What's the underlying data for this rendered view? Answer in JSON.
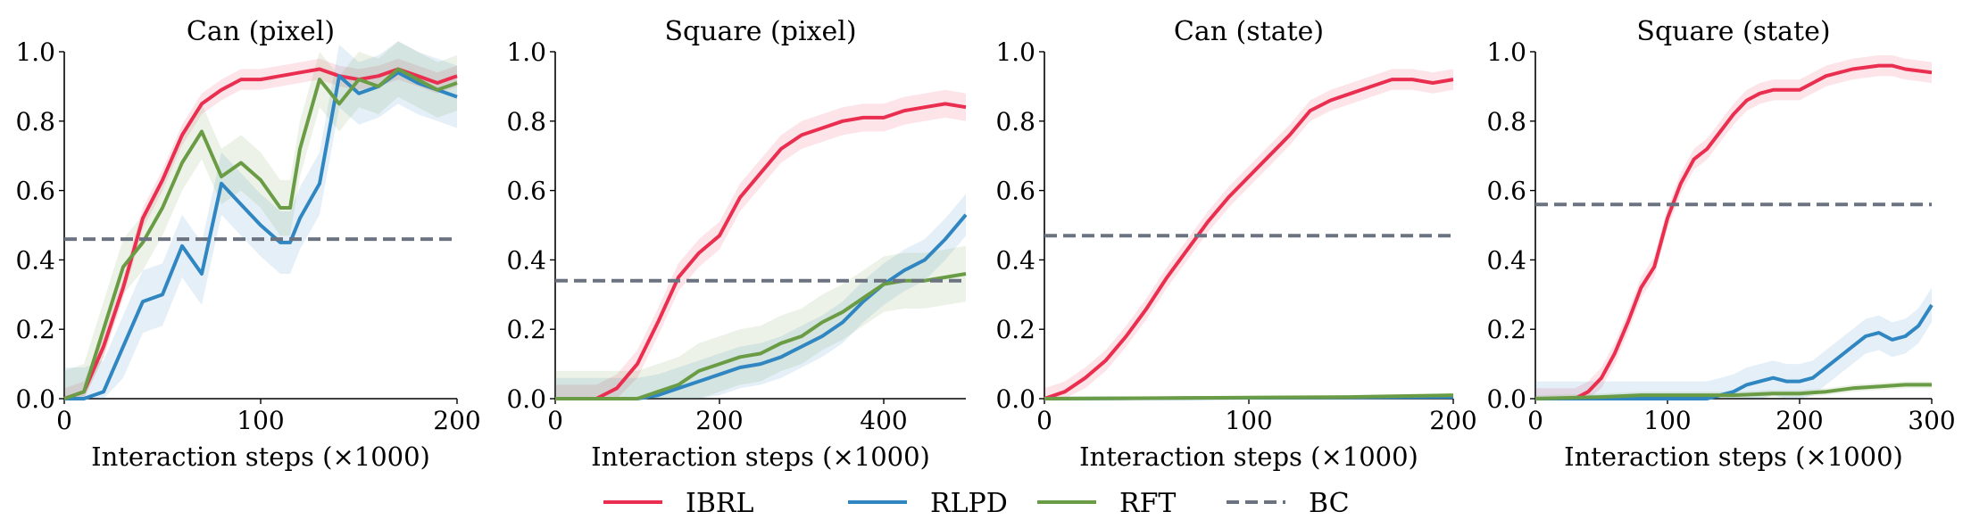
{
  "colors": {
    "IBRL": "#ea2e50",
    "RLPD": "#2f86c1",
    "RFT": "#6a9c45",
    "BC": "#6b7280"
  },
  "legend": [
    {
      "name": "IBRL",
      "style": "solid"
    },
    {
      "name": "RLPD",
      "style": "solid"
    },
    {
      "name": "RFT",
      "style": "solid"
    },
    {
      "name": "BC",
      "style": "dashed"
    }
  ],
  "chart_data": [
    {
      "type": "line",
      "title": "Can (pixel)",
      "xlabel": "Interaction steps (×1000)",
      "ylabel": "",
      "xlim": [
        0,
        200
      ],
      "ylim": [
        0,
        1.0
      ],
      "xticks": [
        0,
        100,
        200
      ],
      "yticks": [
        0.0,
        0.2,
        0.4,
        0.6,
        0.8,
        1.0
      ],
      "series": [
        {
          "name": "IBRL",
          "shade": 0.03,
          "x": [
            0,
            10,
            20,
            30,
            40,
            50,
            60,
            70,
            80,
            90,
            100,
            110,
            120,
            130,
            140,
            150,
            160,
            170,
            180,
            190,
            200
          ],
          "y": [
            0,
            0.02,
            0.15,
            0.32,
            0.52,
            0.63,
            0.76,
            0.85,
            0.89,
            0.92,
            0.92,
            0.93,
            0.94,
            0.95,
            0.93,
            0.92,
            0.93,
            0.95,
            0.93,
            0.91,
            0.93
          ]
        },
        {
          "name": "RLPD",
          "shade": 0.09,
          "x": [
            0,
            10,
            20,
            30,
            40,
            50,
            60,
            70,
            80,
            90,
            100,
            110,
            115,
            120,
            130,
            140,
            150,
            160,
            170,
            180,
            190,
            200
          ],
          "y": [
            0,
            0,
            0.02,
            0.15,
            0.28,
            0.3,
            0.44,
            0.36,
            0.62,
            0.56,
            0.5,
            0.45,
            0.45,
            0.52,
            0.62,
            0.93,
            0.88,
            0.9,
            0.94,
            0.91,
            0.89,
            0.87
          ]
        },
        {
          "name": "RFT",
          "shade": 0.08,
          "x": [
            0,
            10,
            20,
            30,
            40,
            50,
            60,
            70,
            80,
            90,
            100,
            110,
            115,
            120,
            130,
            140,
            150,
            160,
            170,
            180,
            190,
            200
          ],
          "y": [
            0,
            0.02,
            0.2,
            0.38,
            0.45,
            0.55,
            0.68,
            0.77,
            0.64,
            0.68,
            0.63,
            0.55,
            0.55,
            0.72,
            0.92,
            0.85,
            0.92,
            0.9,
            0.95,
            0.92,
            0.89,
            0.91
          ]
        },
        {
          "name": "BC",
          "style": "dashed",
          "x": [
            0,
            200
          ],
          "y": [
            0.46,
            0.46
          ]
        }
      ]
    },
    {
      "type": "line",
      "title": "Square (pixel)",
      "xlabel": "Interaction steps (×1000)",
      "ylabel": "",
      "xlim": [
        0,
        500
      ],
      "ylim": [
        0,
        1.0
      ],
      "xticks": [
        0,
        200,
        400
      ],
      "yticks": [
        0.0,
        0.2,
        0.4,
        0.6,
        0.8,
        1.0
      ],
      "series": [
        {
          "name": "IBRL",
          "shade": 0.04,
          "x": [
            0,
            50,
            75,
            100,
            125,
            150,
            175,
            200,
            225,
            250,
            275,
            300,
            325,
            350,
            375,
            400,
            425,
            450,
            475,
            500
          ],
          "y": [
            0,
            0,
            0.03,
            0.1,
            0.22,
            0.35,
            0.42,
            0.47,
            0.58,
            0.65,
            0.72,
            0.76,
            0.78,
            0.8,
            0.81,
            0.81,
            0.83,
            0.84,
            0.85,
            0.84
          ]
        },
        {
          "name": "RLPD",
          "shade": 0.06,
          "x": [
            0,
            100,
            125,
            150,
            175,
            200,
            225,
            250,
            275,
            300,
            325,
            350,
            375,
            400,
            425,
            450,
            475,
            500
          ],
          "y": [
            0,
            0,
            0.01,
            0.03,
            0.05,
            0.07,
            0.09,
            0.1,
            0.12,
            0.15,
            0.18,
            0.22,
            0.28,
            0.33,
            0.37,
            0.4,
            0.46,
            0.53
          ]
        },
        {
          "name": "RFT",
          "shade": 0.08,
          "x": [
            0,
            100,
            125,
            150,
            175,
            200,
            225,
            250,
            275,
            300,
            325,
            350,
            375,
            400,
            425,
            450,
            475,
            500
          ],
          "y": [
            0,
            0,
            0.02,
            0.04,
            0.08,
            0.1,
            0.12,
            0.13,
            0.16,
            0.18,
            0.22,
            0.25,
            0.29,
            0.33,
            0.34,
            0.34,
            0.35,
            0.36
          ]
        },
        {
          "name": "BC",
          "style": "dashed",
          "x": [
            0,
            500
          ],
          "y": [
            0.34,
            0.34
          ]
        }
      ]
    },
    {
      "type": "line",
      "title": "Can (state)",
      "xlabel": "Interaction steps (×1000)",
      "ylabel": "",
      "xlim": [
        0,
        200
      ],
      "ylim": [
        0,
        1.0
      ],
      "xticks": [
        0,
        100,
        200
      ],
      "yticks": [
        0.0,
        0.2,
        0.4,
        0.6,
        0.8,
        1.0
      ],
      "series": [
        {
          "name": "IBRL",
          "shade": 0.03,
          "x": [
            0,
            10,
            20,
            30,
            40,
            50,
            60,
            70,
            80,
            90,
            100,
            110,
            120,
            130,
            140,
            150,
            160,
            170,
            180,
            190,
            200
          ],
          "y": [
            0,
            0.02,
            0.06,
            0.11,
            0.18,
            0.26,
            0.35,
            0.43,
            0.51,
            0.58,
            0.64,
            0.7,
            0.76,
            0.83,
            0.86,
            0.88,
            0.9,
            0.92,
            0.92,
            0.91,
            0.92
          ]
        },
        {
          "name": "RLPD",
          "shade": 0.0,
          "x": [
            0,
            200
          ],
          "y": [
            0,
            0.005
          ]
        },
        {
          "name": "RFT",
          "shade": 0.0,
          "x": [
            0,
            150,
            200
          ],
          "y": [
            0,
            0.005,
            0.01
          ]
        },
        {
          "name": "BC",
          "style": "dashed",
          "x": [
            0,
            200
          ],
          "y": [
            0.47,
            0.47
          ]
        }
      ]
    },
    {
      "type": "line",
      "title": "Square (state)",
      "xlabel": "Interaction steps (×1000)",
      "ylabel": "",
      "xlim": [
        0,
        300
      ],
      "ylim": [
        0,
        1.0
      ],
      "xticks": [
        0,
        100,
        200,
        300
      ],
      "yticks": [
        0.0,
        0.2,
        0.4,
        0.6,
        0.8,
        1.0
      ],
      "series": [
        {
          "name": "IBRL",
          "shade": 0.03,
          "x": [
            0,
            30,
            40,
            50,
            60,
            70,
            80,
            90,
            100,
            110,
            120,
            130,
            140,
            150,
            160,
            170,
            180,
            190,
            200,
            220,
            240,
            260,
            270,
            280,
            300
          ],
          "y": [
            0,
            0,
            0.02,
            0.06,
            0.13,
            0.22,
            0.32,
            0.38,
            0.52,
            0.62,
            0.69,
            0.72,
            0.77,
            0.82,
            0.86,
            0.88,
            0.89,
            0.89,
            0.89,
            0.93,
            0.95,
            0.96,
            0.96,
            0.95,
            0.94
          ]
        },
        {
          "name": "RLPD",
          "shade": 0.05,
          "x": [
            0,
            130,
            140,
            150,
            160,
            170,
            180,
            190,
            200,
            210,
            220,
            230,
            240,
            250,
            260,
            270,
            280,
            290,
            300
          ],
          "y": [
            0,
            0,
            0.01,
            0.02,
            0.04,
            0.05,
            0.06,
            0.05,
            0.05,
            0.06,
            0.09,
            0.12,
            0.15,
            0.18,
            0.19,
            0.17,
            0.18,
            0.21,
            0.27
          ]
        },
        {
          "name": "RFT",
          "shade": 0.01,
          "x": [
            0,
            50,
            80,
            100,
            130,
            150,
            180,
            200,
            220,
            240,
            260,
            280,
            300
          ],
          "y": [
            0,
            0.005,
            0.01,
            0.01,
            0.01,
            0.01,
            0.015,
            0.015,
            0.02,
            0.03,
            0.035,
            0.04,
            0.04
          ]
        },
        {
          "name": "BC",
          "style": "dashed",
          "x": [
            0,
            300
          ],
          "y": [
            0.56,
            0.56
          ]
        }
      ]
    }
  ]
}
